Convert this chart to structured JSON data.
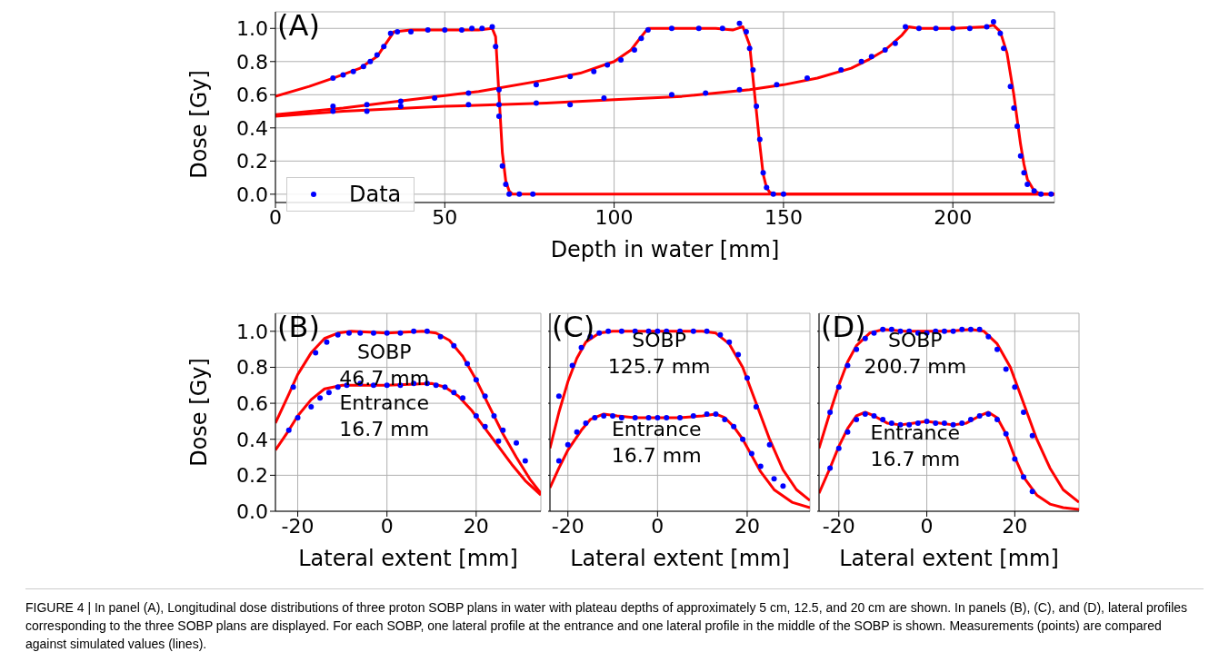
{
  "chart_data": [
    {
      "type": "line",
      "title": "(A)",
      "xlabel": "Depth in water [mm]",
      "ylabel": "Dose [Gy]",
      "xlim": [
        0,
        230
      ],
      "xticks": [
        0,
        50,
        100,
        150,
        200
      ],
      "ylim": [
        -0.05,
        1.1
      ],
      "yticks": [
        {
          "value": 0,
          "label": "0.0"
        },
        {
          "value": 0.2,
          "label": "0.2"
        },
        {
          "value": 0.4,
          "label": "0.4"
        },
        {
          "value": 0.6,
          "label": "0.6"
        },
        {
          "value": 0.8,
          "label": "0.8"
        },
        {
          "value": 1,
          "label": "1.0"
        }
      ],
      "grid": true,
      "legend": "bottom left",
      "line_style": "solid",
      "annotations": [
        "FIGURE 4 | In panel (A), Longitudinal dose distributions of three proton SOBP plans in water with plateau depths of approximately 5 cm, 12.5, and 20 cm are shown. In panels (B), (C), and (D), lateral profiles corresponding to the three SOBP plans are displayed. For each SOBP, one lateral profile at the entrance and one lateral profile in the middle of the SOBP is shown. Measurements (points) are compared against simulated values (lines)."
      ],
      "series": [
        {
          "color": "#ff0000",
          "x": [
            0,
            10,
            17,
            25,
            30,
            33,
            35,
            40,
            50,
            60,
            64,
            65,
            66,
            67,
            68,
            69,
            70,
            230
          ],
          "values": [
            0.59,
            0.65,
            0.7,
            0.76,
            0.83,
            0.92,
            0.98,
            0.99,
            0.99,
            0.99,
            1.0,
            0.95,
            0.6,
            0.25,
            0.08,
            0.02,
            0,
            0
          ]
        },
        {
          "color": "#ff0000",
          "x": [
            0,
            20,
            40,
            60,
            80,
            90,
            100,
            105,
            108,
            110,
            120,
            130,
            135,
            138,
            140,
            141,
            142,
            143,
            144,
            145,
            146,
            148,
            230
          ],
          "values": [
            0.48,
            0.52,
            0.57,
            0.62,
            0.69,
            0.73,
            0.8,
            0.87,
            0.95,
            1.0,
            1.0,
            1.0,
            0.99,
            1.01,
            0.9,
            0.7,
            0.5,
            0.3,
            0.12,
            0.04,
            0.01,
            0,
            0
          ]
        },
        {
          "color": "#ff0000",
          "x": [
            0,
            20,
            50,
            80,
            100,
            120,
            140,
            150,
            160,
            170,
            175,
            180,
            185,
            187,
            190,
            200,
            210,
            212,
            214,
            216,
            218,
            219,
            220,
            221,
            222,
            224,
            226,
            230
          ],
          "values": [
            0.47,
            0.5,
            0.53,
            0.55,
            0.57,
            0.59,
            0.63,
            0.66,
            0.7,
            0.76,
            0.81,
            0.87,
            0.96,
            1.01,
            1.0,
            1.0,
            1.01,
            1.02,
            0.98,
            0.85,
            0.6,
            0.45,
            0.3,
            0.18,
            0.09,
            0.02,
            0,
            0
          ]
        },
        {
          "type": "scatter",
          "name": "Data",
          "color": "#0000ff",
          "marker": "circle",
          "x": [
            17,
            20,
            23,
            26,
            28,
            30,
            32,
            34,
            36,
            40,
            45,
            50,
            55,
            58,
            61,
            64,
            65,
            66,
            67,
            68,
            69,
            72,
            76,
            17,
            27,
            37,
            47,
            57,
            66,
            77,
            87,
            94,
            98,
            102,
            106,
            108,
            110,
            117,
            125,
            132,
            137,
            139,
            140,
            141,
            142,
            143,
            144,
            145,
            147,
            150,
            17,
            27,
            37,
            57,
            66,
            77,
            87,
            97,
            117,
            127,
            137,
            148,
            157,
            167,
            173,
            176,
            180,
            183,
            186,
            190,
            195,
            200,
            205,
            210,
            212,
            214,
            215,
            217,
            218,
            219,
            220,
            221,
            222,
            224,
            226,
            229
          ],
          "values": [
            0.7,
            0.72,
            0.74,
            0.77,
            0.8,
            0.84,
            0.89,
            0.97,
            0.98,
            0.98,
            0.99,
            0.99,
            0.99,
            1.0,
            1.0,
            1.01,
            0.89,
            0.47,
            0.17,
            0.06,
            0,
            0,
            0,
            0.53,
            0.54,
            0.56,
            0.58,
            0.61,
            0.63,
            0.66,
            0.71,
            0.74,
            0.78,
            0.81,
            0.87,
            0.94,
            0.99,
            1.0,
            1.0,
            1.0,
            1.03,
            0.98,
            0.88,
            0.75,
            0.53,
            0.33,
            0.13,
            0.04,
            0,
            0,
            0.5,
            0.5,
            0.53,
            0.54,
            0.54,
            0.55,
            0.54,
            0.58,
            0.6,
            0.61,
            0.63,
            0.66,
            0.7,
            0.75,
            0.8,
            0.83,
            0.87,
            0.91,
            1.01,
            1.0,
            1.0,
            1.0,
            1.0,
            1.01,
            1.04,
            0.97,
            0.88,
            0.65,
            0.52,
            0.41,
            0.23,
            0.13,
            0.06,
            0.02,
            0,
            0
          ]
        }
      ]
    },
    {
      "type": "line",
      "title": "(B)",
      "xlabel": "Lateral extent [mm]",
      "ylabel": "Dose [Gy]",
      "xlim": [
        -25,
        34.5
      ],
      "xticks": [
        -20,
        0,
        20
      ],
      "ylim": [
        0,
        1.1
      ],
      "yticks": [
        {
          "value": 0,
          "label": "0.0"
        },
        {
          "value": 0.2,
          "label": "0.2"
        },
        {
          "value": 0.4,
          "label": "0.4"
        },
        {
          "value": 0.6,
          "label": "0.6"
        },
        {
          "value": 0.8,
          "label": "0.8"
        },
        {
          "value": 1,
          "label": "1.0"
        }
      ],
      "grid": true,
      "line_style": "solid",
      "annotations": [
        "SOBP\n46.7 mm",
        "Entrance\n16.7 mm"
      ],
      "series": [
        {
          "color": "#ff0000",
          "x": [
            -25,
            -22,
            -20,
            -17,
            -14,
            -11,
            -8,
            0,
            8,
            11,
            14,
            17,
            20,
            23,
            26,
            29,
            32,
            34.5
          ],
          "values": [
            0.49,
            0.65,
            0.76,
            0.88,
            0.96,
            0.99,
            1.0,
            0.99,
            1.0,
            0.99,
            0.95,
            0.86,
            0.73,
            0.58,
            0.43,
            0.3,
            0.18,
            0.1
          ]
        },
        {
          "color": "#ff0000",
          "x": [
            -25,
            -22,
            -20,
            -17,
            -14,
            -10,
            0,
            10,
            13,
            16,
            19,
            22,
            25,
            28,
            31,
            34.5
          ],
          "values": [
            0.34,
            0.45,
            0.53,
            0.62,
            0.68,
            0.7,
            0.7,
            0.71,
            0.69,
            0.64,
            0.56,
            0.46,
            0.36,
            0.26,
            0.17,
            0.09
          ]
        },
        {
          "type": "scatter",
          "color": "#0000ff",
          "marker": "circle",
          "x": [
            -21,
            -16,
            -13.5,
            -11,
            -8.5,
            -6,
            -3,
            0,
            3,
            6,
            9,
            12,
            15,
            18,
            20,
            22,
            24,
            26,
            29,
            31
          ],
          "values": [
            0.69,
            0.88,
            0.94,
            0.98,
            0.99,
            0.99,
            0.99,
            0.99,
            0.99,
            1.0,
            1.0,
            0.97,
            0.92,
            0.82,
            0.73,
            0.64,
            0.53,
            0.45,
            0.38,
            0.28
          ]
        },
        {
          "type": "scatter",
          "color": "#0000ff",
          "marker": "circle",
          "x": [
            -22,
            -20,
            -17,
            -15,
            -13,
            -11,
            -9,
            -6,
            -3,
            0,
            3,
            6,
            9,
            11,
            13,
            15,
            17,
            20,
            22,
            25
          ],
          "values": [
            0.45,
            0.52,
            0.58,
            0.63,
            0.66,
            0.69,
            0.7,
            0.71,
            0.7,
            0.7,
            0.7,
            0.71,
            0.71,
            0.7,
            0.69,
            0.66,
            0.63,
            0.53,
            0.47,
            0.39
          ]
        }
      ]
    },
    {
      "type": "line",
      "title": "(C)",
      "xlabel": "Lateral extent [mm]",
      "xlim": [
        -24,
        34
      ],
      "xticks": [
        -20,
        0,
        20
      ],
      "ylim": [
        0,
        1.1
      ],
      "yticks": [
        0,
        0.2,
        0.4,
        0.6,
        0.8,
        1
      ],
      "grid": true,
      "tick_labels": "x",
      "line_style": "solid",
      "annotations": [
        "SOBP\n125.7 mm",
        "Entrance\n16.7 mm"
      ],
      "series": [
        {
          "color": "#ff0000",
          "x": [
            -24,
            -22,
            -20,
            -18,
            -16,
            -13,
            -10,
            10,
            13,
            16,
            19,
            22,
            25,
            28,
            31,
            34
          ],
          "values": [
            0.35,
            0.55,
            0.72,
            0.85,
            0.94,
            0.99,
            1.0,
            1.0,
            0.99,
            0.93,
            0.8,
            0.6,
            0.4,
            0.23,
            0.12,
            0.06
          ]
        },
        {
          "color": "#ff0000",
          "x": [
            -24,
            -22,
            -20,
            -17,
            -15,
            -12,
            -9,
            -5,
            0,
            5,
            10,
            13,
            15,
            17,
            19,
            21,
            23,
            26,
            30,
            34
          ],
          "values": [
            0.13,
            0.24,
            0.34,
            0.45,
            0.51,
            0.54,
            0.53,
            0.52,
            0.52,
            0.52,
            0.53,
            0.54,
            0.52,
            0.47,
            0.4,
            0.31,
            0.22,
            0.12,
            0.05,
            0.02
          ]
        },
        {
          "type": "scatter",
          "color": "#0000ff",
          "marker": "circle",
          "x": [
            -22,
            -19,
            -17,
            -15,
            -13,
            -11,
            -8,
            -5,
            -2,
            0,
            2,
            5,
            8,
            11,
            14,
            16,
            18,
            20,
            22,
            25
          ],
          "values": [
            0.64,
            0.81,
            0.91,
            0.97,
            0.99,
            1.0,
            1.0,
            1.0,
            1.0,
            1.0,
            1.0,
            1.0,
            1.0,
            1.0,
            0.98,
            0.94,
            0.87,
            0.74,
            0.58,
            0.37
          ]
        },
        {
          "type": "scatter",
          "color": "#0000ff",
          "marker": "circle",
          "x": [
            -22,
            -20,
            -18,
            -16,
            -14,
            -12,
            -10,
            -8,
            -5,
            -2,
            0,
            2,
            5,
            8,
            11,
            13,
            15,
            17,
            19,
            21,
            23,
            26,
            28
          ],
          "values": [
            0.28,
            0.37,
            0.44,
            0.49,
            0.52,
            0.53,
            0.53,
            0.52,
            0.52,
            0.52,
            0.52,
            0.52,
            0.52,
            0.53,
            0.54,
            0.54,
            0.51,
            0.47,
            0.4,
            0.32,
            0.25,
            0.18,
            0.14
          ]
        }
      ]
    },
    {
      "type": "line",
      "title": "(D)",
      "xlabel": "Lateral extent [mm]",
      "xlim": [
        -24.5,
        34.6
      ],
      "xticks": [
        -20,
        0,
        20
      ],
      "ylim": [
        0,
        1.1
      ],
      "yticks": [
        0,
        0.2,
        0.4,
        0.6,
        0.8,
        1
      ],
      "grid": true,
      "tick_labels": "x",
      "line_style": "solid",
      "annotations": [
        "SOBP\n200.7 mm",
        "Entrance\n16.7 mm"
      ],
      "series": [
        {
          "color": "#ff0000",
          "x": [
            -24.5,
            -22,
            -20,
            -18,
            -16,
            -13,
            -10,
            -5,
            0,
            5,
            10,
            13,
            16,
            19,
            22,
            25,
            28,
            31,
            34.6
          ],
          "values": [
            0.35,
            0.55,
            0.7,
            0.83,
            0.92,
            0.99,
            1.01,
            1.0,
            1.0,
            1.0,
            1.01,
            1.0,
            0.93,
            0.8,
            0.6,
            0.4,
            0.24,
            0.12,
            0.05
          ]
        },
        {
          "color": "#ff0000",
          "x": [
            -24.5,
            -22,
            -20,
            -18,
            -16,
            -14,
            -12,
            -9,
            -6,
            -3,
            0,
            3,
            6,
            9,
            12,
            14,
            16,
            18,
            20,
            22,
            25,
            28,
            31,
            34.6
          ],
          "values": [
            0.1,
            0.24,
            0.36,
            0.46,
            0.53,
            0.55,
            0.53,
            0.49,
            0.48,
            0.49,
            0.5,
            0.49,
            0.48,
            0.49,
            0.53,
            0.55,
            0.52,
            0.43,
            0.3,
            0.19,
            0.09,
            0.04,
            0.02,
            0.01
          ]
        },
        {
          "type": "scatter",
          "color": "#0000ff",
          "marker": "circle",
          "x": [
            -22,
            -20,
            -18,
            -16,
            -14,
            -12,
            -10,
            -8,
            -6,
            -4,
            -2,
            0,
            2,
            4,
            6,
            8,
            10,
            12,
            14,
            16,
            18,
            20,
            22,
            24
          ],
          "values": [
            0.55,
            0.69,
            0.81,
            0.9,
            0.96,
            0.99,
            1.01,
            1.01,
            1.0,
            1.0,
            0.99,
            0.99,
            1.0,
            1.0,
            1.0,
            1.01,
            1.01,
            1.01,
            0.97,
            0.9,
            0.79,
            0.69,
            0.55,
            0.42
          ]
        },
        {
          "type": "scatter",
          "color": "#0000ff",
          "marker": "circle",
          "x": [
            -22,
            -20,
            -18,
            -16,
            -14,
            -12,
            -10,
            -8,
            -6,
            -4,
            -2,
            0,
            2,
            4,
            6,
            8,
            10,
            12,
            14,
            16,
            18,
            20,
            22,
            24
          ],
          "values": [
            0.24,
            0.35,
            0.44,
            0.51,
            0.54,
            0.53,
            0.51,
            0.49,
            0.48,
            0.48,
            0.49,
            0.5,
            0.49,
            0.49,
            0.48,
            0.49,
            0.51,
            0.53,
            0.54,
            0.51,
            0.43,
            0.29,
            0.19,
            0.11
          ]
        }
      ]
    }
  ]
}
